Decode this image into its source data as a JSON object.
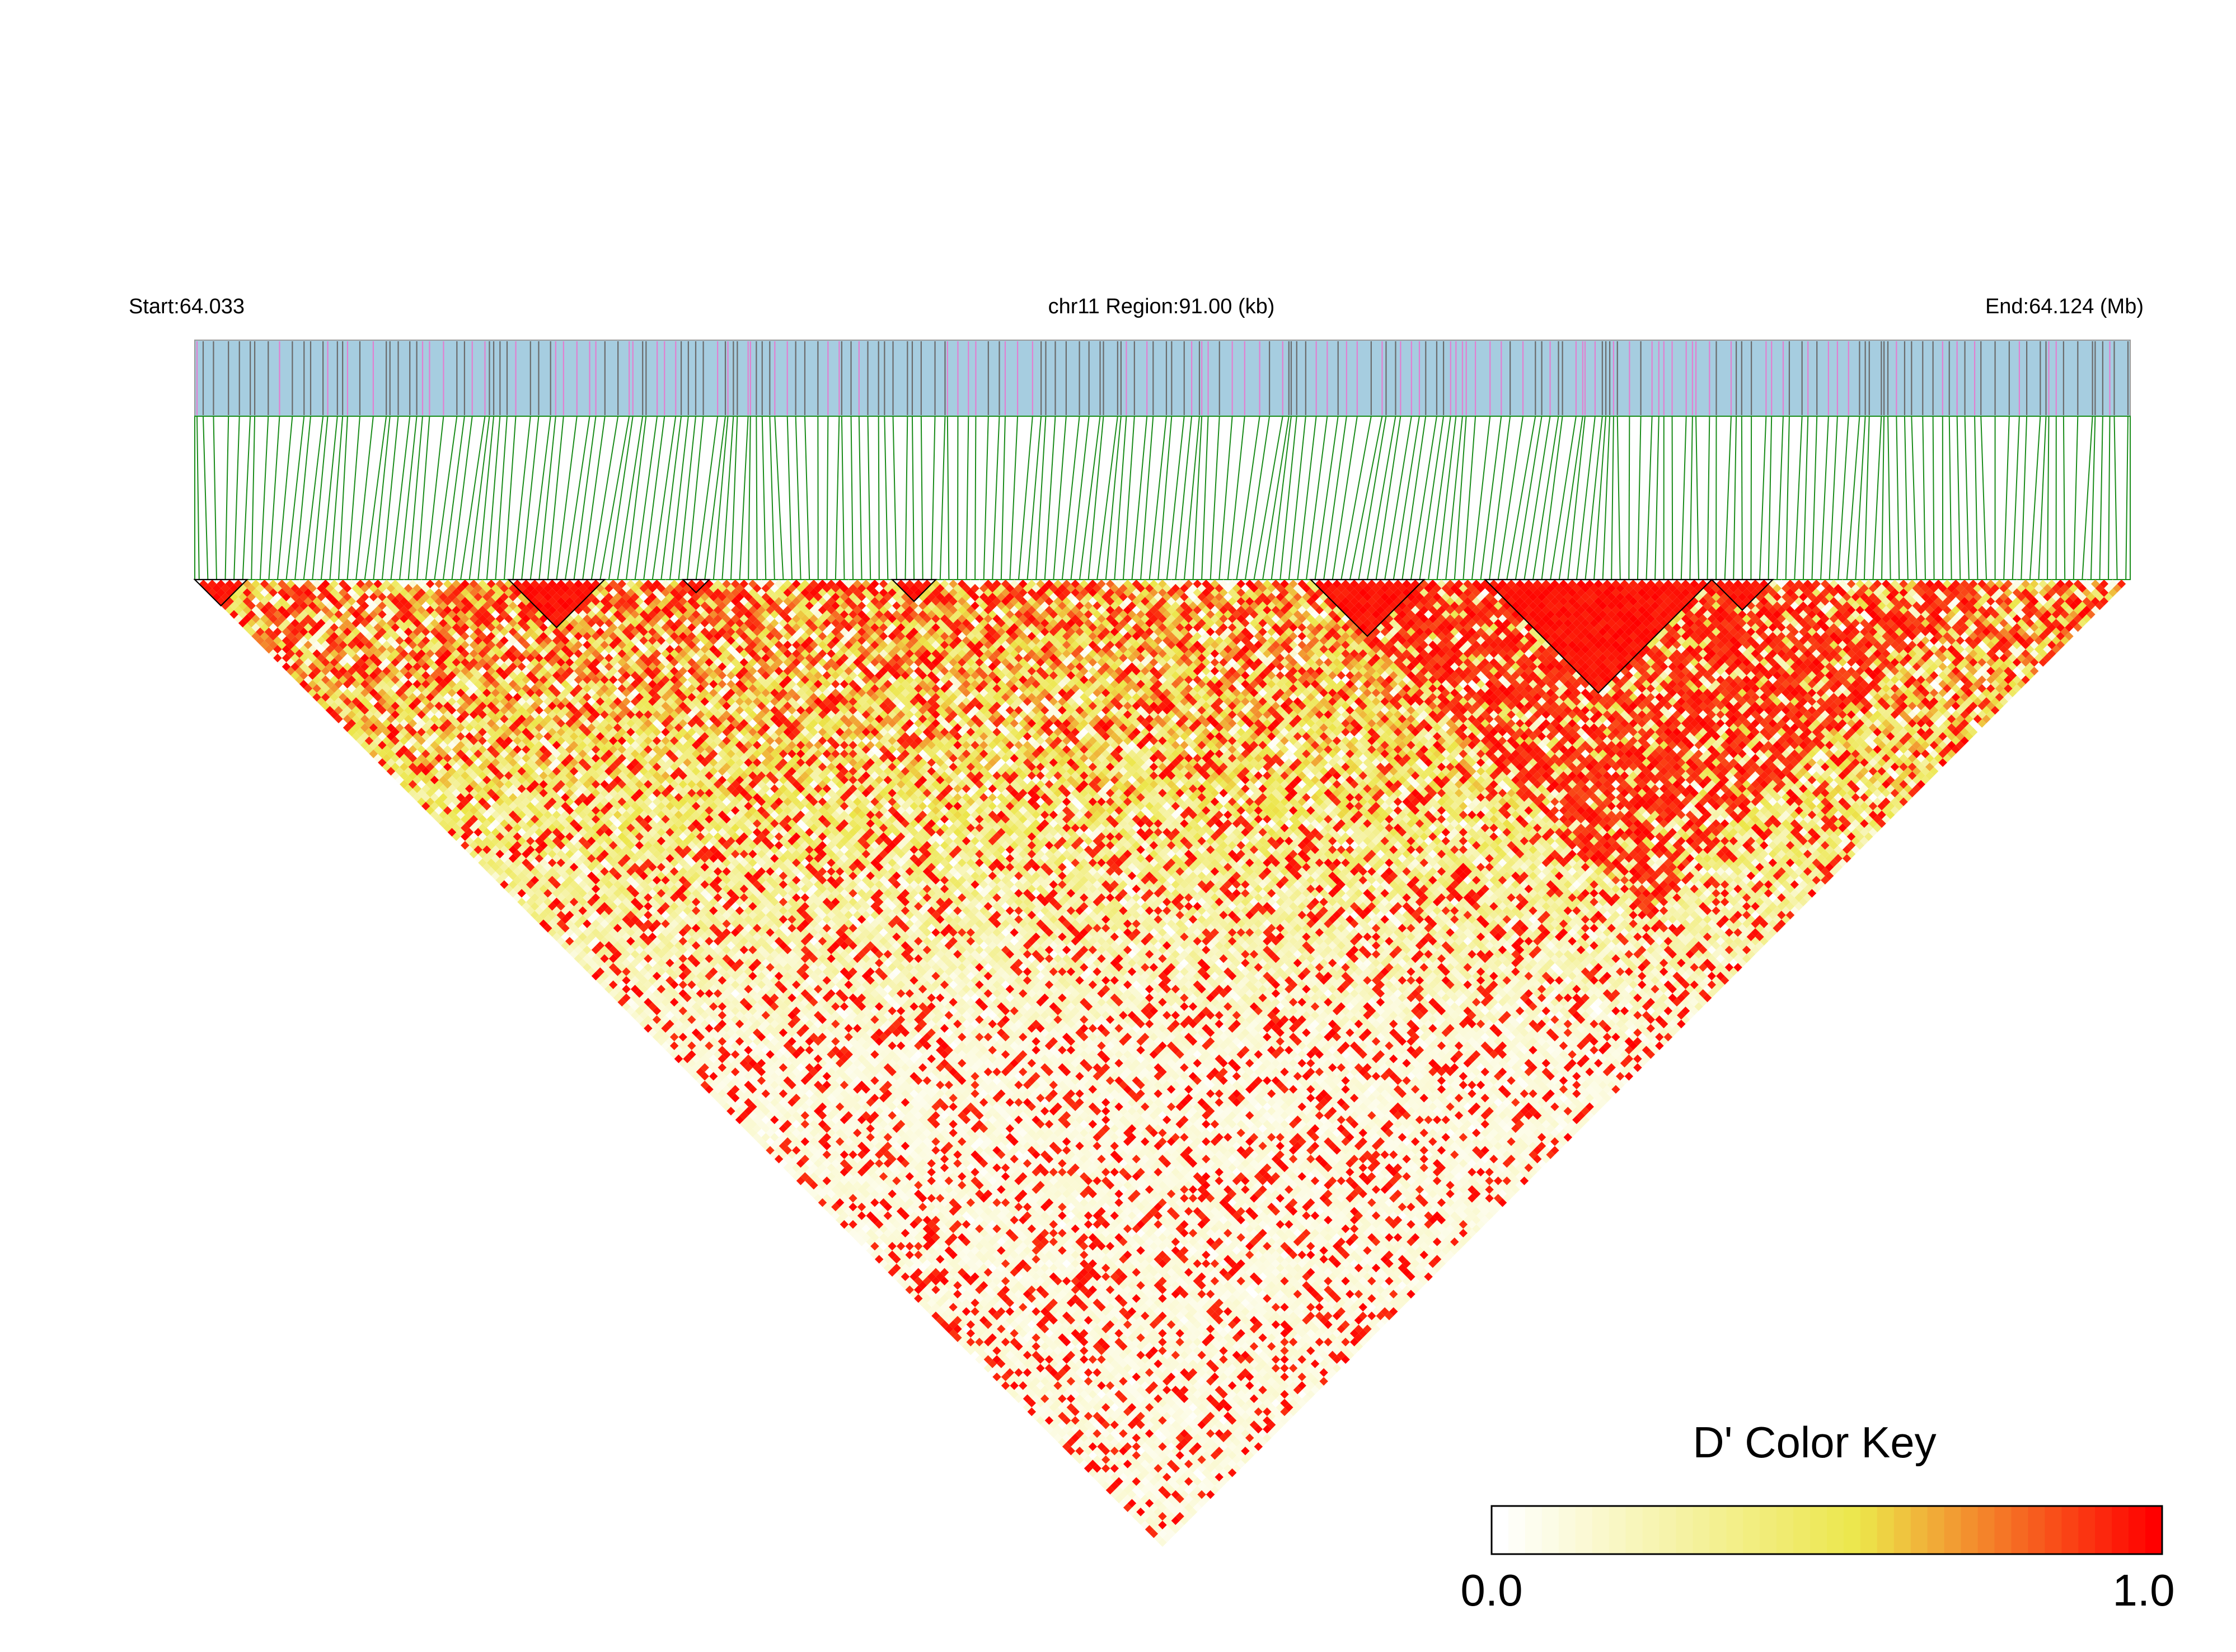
{
  "header": {
    "start_label": "Start:64.033",
    "region_label": "chr11 Region:91.00 (kb)",
    "end_label": "End:64.124 (Mb)"
  },
  "colors": {
    "track_background": "#a6cde0",
    "snp_tick_gray": "#6b6b6b",
    "snp_tick_pink": "#e27fd0",
    "connector_line": "#1a8c1a",
    "ld_low": "#ffffff",
    "ld_mid": "#ece64a",
    "ld_high": "#ff0000"
  },
  "chart_data": {
    "type": "heatmap",
    "subtype": "linkage-disequilibrium-triangle",
    "chromosome": "chr11",
    "region_start_mb": 64.033,
    "region_end_mb": 64.124,
    "region_length_kb": 91.0,
    "snp_count": 222,
    "metric": "D'",
    "color_scale_range": [
      0.0,
      1.0
    ],
    "haplotype_blocks_snp_index": [
      [
        0,
        5
      ],
      [
        36,
        46
      ],
      [
        56,
        58
      ],
      [
        80,
        84
      ],
      [
        128,
        140
      ],
      [
        148,
        173
      ],
      [
        174,
        180
      ]
    ],
    "legend": {
      "title": "D' Color Key",
      "min_label": "0.0",
      "max_label": "1.0",
      "placement": "bottom-right"
    }
  }
}
